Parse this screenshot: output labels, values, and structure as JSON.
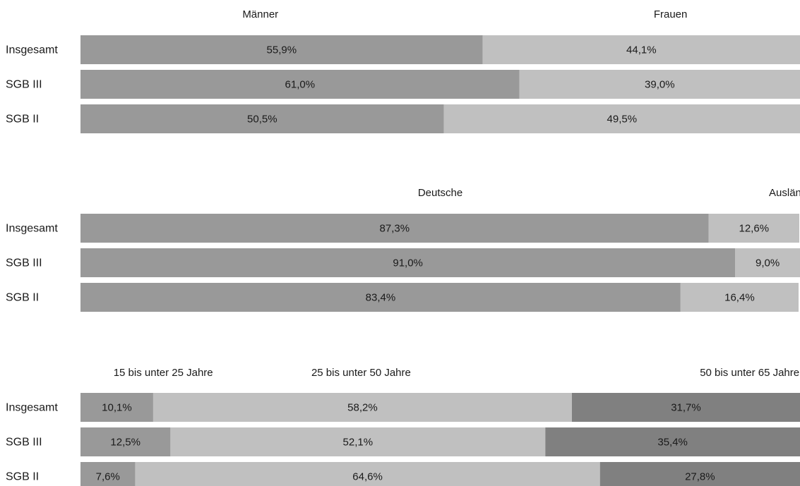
{
  "chart_data": [
    {
      "type": "bar",
      "orientation": "horizontal",
      "stacked": true,
      "title": "",
      "categories": [
        "Insgesamt",
        "SGB III",
        "SGB II"
      ],
      "series": [
        {
          "name": "Männer",
          "values": [
            55.9,
            61.0,
            50.5
          ],
          "labels": [
            "55,9%",
            "61,0%",
            "50,5%"
          ],
          "color": "#999999"
        },
        {
          "name": "Frauen",
          "values": [
            44.1,
            39.0,
            49.5
          ],
          "labels": [
            "44,1%",
            "39,0%",
            "49,5%"
          ],
          "color": "#c0c0c0"
        }
      ],
      "xlim": [
        0,
        100
      ]
    },
    {
      "type": "bar",
      "orientation": "horizontal",
      "stacked": true,
      "title": "",
      "categories": [
        "Insgesamt",
        "SGB III",
        "SGB II"
      ],
      "series": [
        {
          "name": "Deutsche",
          "values": [
            87.3,
            91.0,
            83.4
          ],
          "labels": [
            "87,3%",
            "91,0%",
            "83,4%"
          ],
          "color": "#999999"
        },
        {
          "name": "Ausländer",
          "values": [
            12.6,
            9.0,
            16.4
          ],
          "labels": [
            "12,6%",
            "9,0%",
            "16,4%"
          ],
          "color": "#c0c0c0"
        }
      ],
      "xlim": [
        0,
        100
      ]
    },
    {
      "type": "bar",
      "orientation": "horizontal",
      "stacked": true,
      "title": "",
      "categories": [
        "Insgesamt",
        "SGB III",
        "SGB II"
      ],
      "series": [
        {
          "name": "15 bis unter 25 Jahre",
          "values": [
            10.1,
            12.5,
            7.6
          ],
          "labels": [
            "10,1%",
            "12,5%",
            "7,6%"
          ],
          "color": "#999999"
        },
        {
          "name": "25 bis unter 50 Jahre",
          "values": [
            58.2,
            52.1,
            64.6
          ],
          "labels": [
            "58,2%",
            "52,1%",
            "64,6%"
          ],
          "color": "#c0c0c0"
        },
        {
          "name": "50 bis unter 65 Jahre",
          "values": [
            31.7,
            35.4,
            27.8
          ],
          "labels": [
            "31,7%",
            "35,4%",
            "27,8%"
          ],
          "color": "#808080"
        }
      ],
      "xlim": [
        0,
        100
      ]
    }
  ]
}
